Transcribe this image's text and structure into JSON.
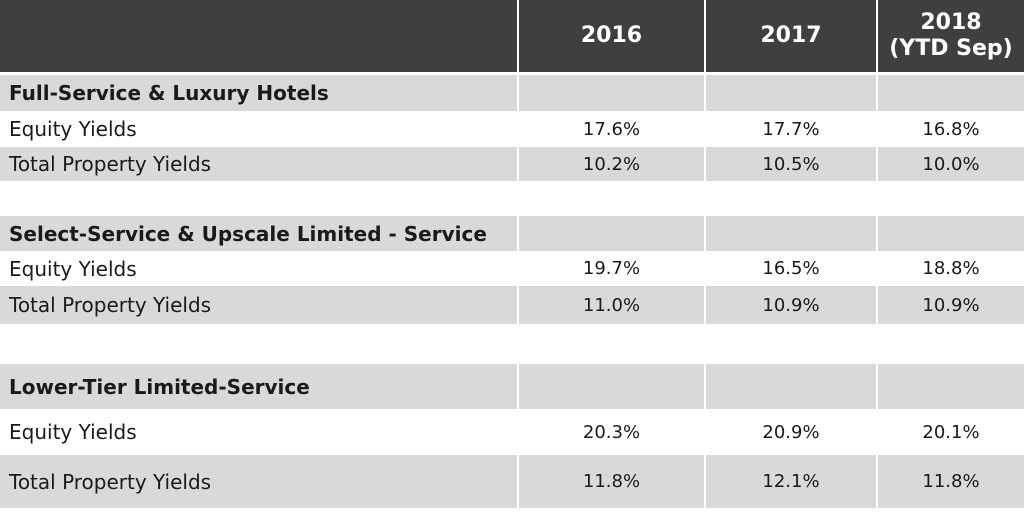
{
  "header": {
    "col0": "",
    "col1": "2016",
    "col2": "2017",
    "col3_line1": "2018",
    "col3_line2": "(YTD Sep)"
  },
  "sections": [
    {
      "title": "Full-Service & Luxury Hotels",
      "rows": [
        {
          "label": "Equity Yields",
          "values": [
            "17.6%",
            "17.7%",
            "16.8%"
          ]
        },
        {
          "label": "Total Property Yields",
          "values": [
            "10.2%",
            "10.5%",
            "10.0%"
          ]
        }
      ]
    },
    {
      "title": "Select-Service & Upscale Limited - Service",
      "rows": [
        {
          "label": "Equity Yields",
          "values": [
            "19.7%",
            "16.5%",
            "18.8%"
          ]
        },
        {
          "label": "Total Property Yields",
          "values": [
            "11.0%",
            "10.9%",
            "10.9%"
          ]
        }
      ]
    },
    {
      "title": "Lower-Tier Limited-Service",
      "rows": [
        {
          "label": "Equity Yields",
          "values": [
            "20.3%",
            "20.9%",
            "20.1%"
          ]
        },
        {
          "label": "Total Property Yields",
          "values": [
            "11.8%",
            "12.1%",
            "11.8%"
          ]
        }
      ]
    }
  ]
}
